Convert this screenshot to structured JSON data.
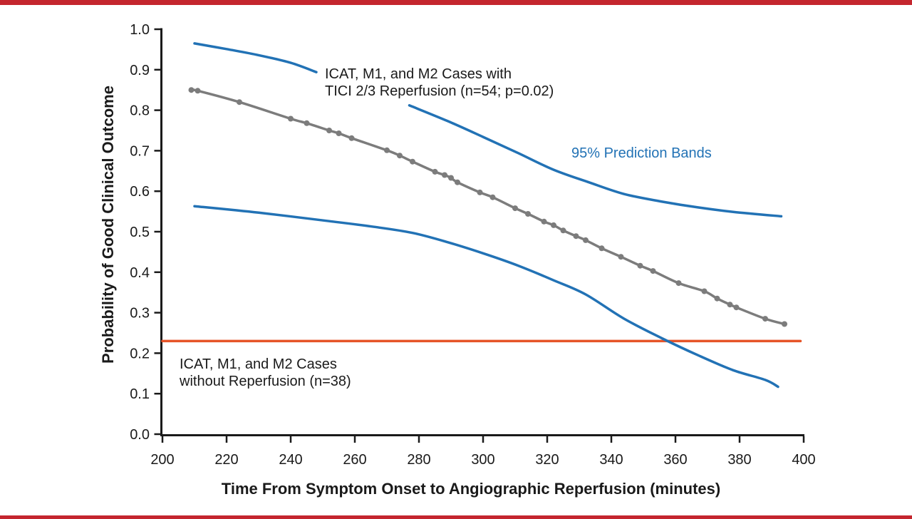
{
  "page": {
    "top_border_color": "#c4262e",
    "bottom_border_color": "#c4262e",
    "background": "#ffffff",
    "ink_color": "#1a1a1a"
  },
  "chart_data": {
    "type": "line",
    "title": "",
    "xlabel": "Time From Symptom Onset to Angiographic Reperfusion (minutes)",
    "ylabel": "Probability of Good Clinical Outcome",
    "xlim": [
      200,
      400
    ],
    "ylim": [
      0.0,
      1.0
    ],
    "x_ticks": [
      200,
      220,
      240,
      260,
      280,
      300,
      320,
      340,
      360,
      380,
      400
    ],
    "y_ticks": [
      0.0,
      0.1,
      0.2,
      0.3,
      0.4,
      0.5,
      0.6,
      0.7,
      0.8,
      0.9,
      1.0
    ],
    "grid": false,
    "legend_position": "none-inline-annotations",
    "series": [
      {
        "id": "main-curve",
        "name": "ICAT, M1, and M2 cases with TICI 2/3 reperfusion — fitted probability with case markers",
        "color": "#7c7c7c",
        "line_width": 3.5,
        "markers": true,
        "marker_radius": 4,
        "points": [
          [
            209,
            0.85
          ],
          [
            211,
            0.848
          ],
          [
            224,
            0.82
          ],
          [
            240,
            0.779
          ],
          [
            245,
            0.768
          ],
          [
            252,
            0.75
          ],
          [
            255,
            0.743
          ],
          [
            259,
            0.731
          ],
          [
            270,
            0.701
          ],
          [
            274,
            0.688
          ],
          [
            278,
            0.673
          ],
          [
            285,
            0.648
          ],
          [
            288,
            0.64
          ],
          [
            290,
            0.633
          ],
          [
            292,
            0.622
          ],
          [
            299,
            0.597
          ],
          [
            303,
            0.585
          ],
          [
            310,
            0.558
          ],
          [
            314,
            0.544
          ],
          [
            319,
            0.525
          ],
          [
            322,
            0.516
          ],
          [
            325,
            0.503
          ],
          [
            329,
            0.489
          ],
          [
            332,
            0.479
          ],
          [
            337,
            0.459
          ],
          [
            343,
            0.438
          ],
          [
            349,
            0.416
          ],
          [
            353,
            0.403
          ],
          [
            361,
            0.373
          ],
          [
            369,
            0.353
          ],
          [
            373,
            0.335
          ],
          [
            377,
            0.32
          ],
          [
            379,
            0.313
          ],
          [
            388,
            0.285
          ],
          [
            394,
            0.272
          ]
        ]
      },
      {
        "id": "upper-band-left",
        "name": "95% prediction band — upper (left segment, interrupted by label)",
        "color": "#2272b5",
        "line_width": 3.5,
        "markers": false,
        "points": [
          [
            210,
            0.965
          ],
          [
            220,
            0.951
          ],
          [
            230,
            0.936
          ],
          [
            240,
            0.917
          ],
          [
            248,
            0.894
          ]
        ]
      },
      {
        "id": "upper-band-right",
        "name": "95% prediction band — upper (right segment)",
        "color": "#2272b5",
        "line_width": 3.5,
        "markers": false,
        "points": [
          [
            277,
            0.812
          ],
          [
            289,
            0.773
          ],
          [
            300,
            0.734
          ],
          [
            311,
            0.694
          ],
          [
            322,
            0.653
          ],
          [
            333,
            0.622
          ],
          [
            344,
            0.593
          ],
          [
            356,
            0.574
          ],
          [
            367,
            0.56
          ],
          [
            378,
            0.549
          ],
          [
            393,
            0.538
          ]
        ]
      },
      {
        "id": "lower-band",
        "name": "95% prediction band — lower",
        "color": "#2272b5",
        "line_width": 3.5,
        "markers": false,
        "points": [
          [
            210,
            0.563
          ],
          [
            230,
            0.547
          ],
          [
            252,
            0.526
          ],
          [
            266,
            0.512
          ],
          [
            278,
            0.497
          ],
          [
            289,
            0.474
          ],
          [
            301,
            0.444
          ],
          [
            311,
            0.416
          ],
          [
            322,
            0.38
          ],
          [
            332,
            0.345
          ],
          [
            344,
            0.285
          ],
          [
            356,
            0.236
          ],
          [
            367,
            0.195
          ],
          [
            378,
            0.158
          ],
          [
            388,
            0.134
          ],
          [
            392,
            0.117
          ]
        ]
      },
      {
        "id": "baseline-no-reperfusion",
        "name": "ICAT, M1, and M2 cases without reperfusion — constant probability",
        "color": "#e65428",
        "line_width": 3.5,
        "markers": false,
        "points": [
          [
            200,
            0.23
          ],
          [
            399,
            0.23
          ]
        ]
      }
    ],
    "annotations": [
      {
        "id": "tici-cases",
        "text": "ICAT, M1, and M2 Cases with\nTICI 2/3 Reperfusion (n=54; p=0.02)",
        "color": "#1a1a1a"
      },
      {
        "id": "prediction-bands",
        "text": "95% Prediction Bands",
        "color": "#2272b5"
      },
      {
        "id": "no-reperfusion",
        "text": "ICAT, M1, and M2 Cases\nwithout Reperfusion (n=38)",
        "color": "#1a1a1a"
      }
    ]
  }
}
